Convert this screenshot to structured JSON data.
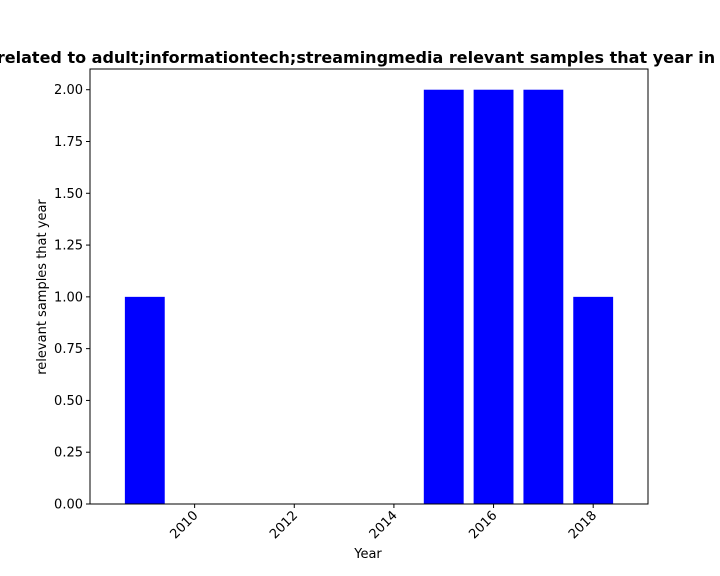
{
  "chart_data": {
    "type": "bar",
    "title": "related to adult;informationtech;streamingmedia relevant samples that year in",
    "xlabel": "Year",
    "ylabel": "relevant samples that year",
    "x": [
      2009,
      2015,
      2016,
      2017,
      2018
    ],
    "values": [
      1,
      2,
      2,
      2,
      1
    ],
    "bar_color": "#0000ff",
    "xlim": [
      2007.9,
      2019.1
    ],
    "ylim": [
      0,
      2.1
    ],
    "xticks": [
      2010,
      2012,
      2014,
      2016,
      2018
    ],
    "xtick_labels": [
      "2010",
      "2012",
      "2014",
      "2016",
      "2018"
    ],
    "yticks": [
      0,
      0.25,
      0.5,
      0.75,
      1.0,
      1.25,
      1.5,
      1.75,
      2.0
    ],
    "ytick_labels": [
      "0.00",
      "0.25",
      "0.50",
      "0.75",
      "1.00",
      "1.25",
      "1.50",
      "1.75",
      "2.00"
    ],
    "xtick_rotation_deg": -45,
    "grid": false,
    "legend": "none"
  }
}
